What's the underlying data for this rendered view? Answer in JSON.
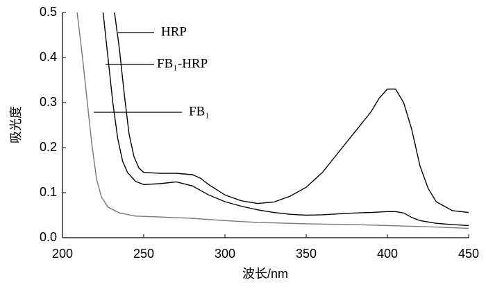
{
  "chart_data": {
    "type": "line",
    "xlabel": "波长/nm",
    "ylabel": "吸光度",
    "xlim": [
      200,
      450
    ],
    "ylim": [
      0,
      0.5
    ],
    "xticks": [
      200,
      250,
      300,
      350,
      400,
      450
    ],
    "yticks": [
      {
        "value": 0,
        "label": "0.0"
      },
      0.1,
      0.2,
      0.3,
      0.4,
      0.5
    ],
    "series": [
      {
        "name": "HRP",
        "color": "#000000",
        "x": [
          232,
          235,
          238,
          241,
          244,
          247,
          250,
          260,
          270,
          280,
          285,
          290,
          300,
          310,
          320,
          330,
          340,
          350,
          360,
          370,
          380,
          390,
          395,
          400,
          405,
          410,
          415,
          420,
          425,
          430,
          440,
          450
        ],
        "values": [
          0.5,
          0.42,
          0.32,
          0.23,
          0.18,
          0.155,
          0.145,
          0.143,
          0.143,
          0.14,
          0.132,
          0.118,
          0.095,
          0.082,
          0.076,
          0.079,
          0.092,
          0.112,
          0.145,
          0.19,
          0.235,
          0.28,
          0.31,
          0.33,
          0.33,
          0.3,
          0.24,
          0.16,
          0.11,
          0.08,
          0.06,
          0.056
        ]
      },
      {
        "name": "FB₁-HRP",
        "color": "#000000",
        "x": [
          225,
          228,
          231,
          234,
          237,
          240,
          245,
          250,
          260,
          270,
          280,
          290,
          300,
          310,
          320,
          330,
          340,
          350,
          360,
          370,
          380,
          390,
          400,
          405,
          410,
          415,
          420,
          430,
          440,
          450
        ],
        "values": [
          0.5,
          0.4,
          0.3,
          0.22,
          0.17,
          0.145,
          0.125,
          0.118,
          0.12,
          0.124,
          0.115,
          0.095,
          0.08,
          0.07,
          0.062,
          0.056,
          0.052,
          0.05,
          0.051,
          0.053,
          0.055,
          0.056,
          0.058,
          0.058,
          0.055,
          0.045,
          0.038,
          0.032,
          0.029,
          0.027
        ]
      },
      {
        "name": "FB₁",
        "color": "#777777",
        "x": [
          209,
          212,
          215,
          218,
          221,
          224,
          228,
          235,
          245,
          260,
          280,
          300,
          320,
          350,
          380,
          400,
          420,
          450
        ],
        "values": [
          0.5,
          0.41,
          0.31,
          0.21,
          0.13,
          0.09,
          0.068,
          0.055,
          0.048,
          0.046,
          0.043,
          0.038,
          0.034,
          0.031,
          0.029,
          0.027,
          0.025,
          0.021
        ]
      }
    ]
  }
}
